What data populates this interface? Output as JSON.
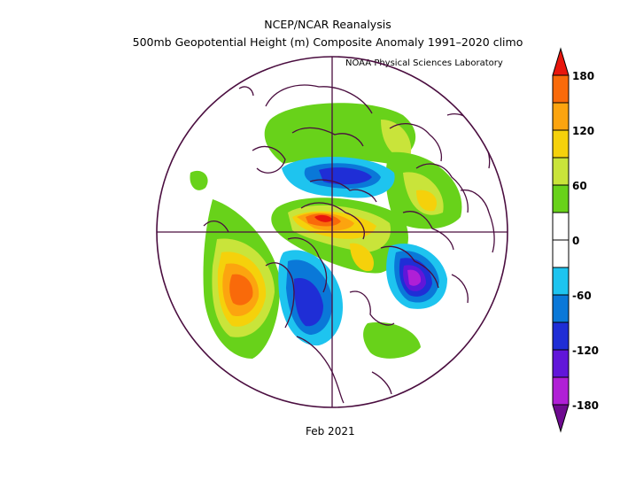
{
  "header": {
    "title": "NCEP/NCAR Reanalysis",
    "subtitle": "500mb Geopotential Height (m) Composite Anomaly 1991–2020 climo",
    "credit": "NOAA Physical Sciences Laboratory"
  },
  "footer": {
    "period": "Feb 2021"
  },
  "colorbar": {
    "labels": [
      "180",
      "120",
      "60",
      "0",
      "-60",
      "-120",
      "-180"
    ],
    "colors": [
      "#e8160c",
      "#f96a0a",
      "#fca40f",
      "#f5d10b",
      "#c9e43a",
      "#68d21a",
      "#ffffff",
      "#ffffff",
      "#1ec4ef",
      "#0a78d8",
      "#1f2ed6",
      "#6116d9",
      "#b01fd6",
      "#6e0a90"
    ]
  },
  "anomalies": [
    {
      "name": "greenland-positive-ridge",
      "sign": "positive",
      "peak": "150-180"
    },
    {
      "name": "gulf-of-alaska-positive",
      "sign": "positive",
      "peak": "120-150"
    },
    {
      "name": "arctic-siberia-negative",
      "sign": "negative",
      "peak": "-90 to -120"
    },
    {
      "name": "north-america-negative",
      "sign": "negative",
      "peak": "-120 to -150"
    },
    {
      "name": "europe-negative",
      "sign": "negative",
      "peak": "-150 to -180"
    }
  ]
}
